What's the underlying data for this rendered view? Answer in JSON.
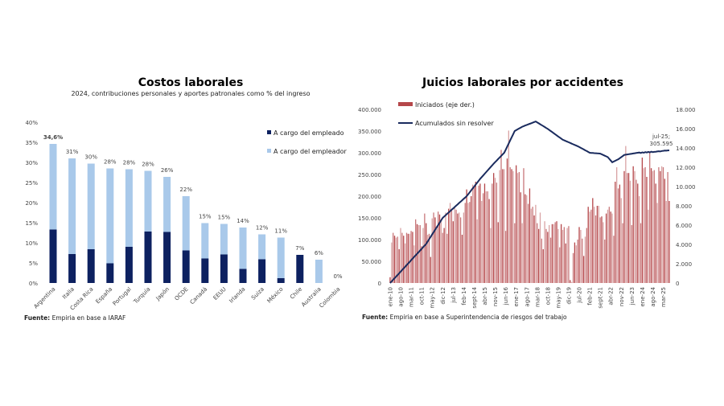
{
  "colors": {
    "empleado": "#0d2160",
    "empleador": "#a9c9ea",
    "iniciados": "#b5474a",
    "acumulados": "#1a2b5e"
  },
  "chart_data": [
    {
      "type": "bar",
      "stacked": true,
      "title": "Costos laborales",
      "subtitle": "2024, contribuciones personales y aportes patronales como % del ingreso",
      "source_bold": "Fuente:",
      "source": "Empiria en base a IARAF",
      "ylim": [
        0,
        40
      ],
      "yticks": [
        "0%",
        "5%",
        "10%",
        "15%",
        "20%",
        "25%",
        "30%",
        "35%",
        "40%"
      ],
      "legend_position": "top-right",
      "categories": [
        "Argentina",
        "Italia",
        "Costa Rica",
        "España",
        "Portugal",
        "Turquía",
        "Japón",
        "OCDE",
        "Canadá",
        "EEUU",
        "Irlanda",
        "Suiza",
        "México",
        "Chile",
        "Australia",
        "Colombia"
      ],
      "series": [
        {
          "name": "A cargo del empleado",
          "values": [
            13.3,
            7.2,
            8.4,
            4.9,
            9.0,
            12.8,
            12.7,
            8.1,
            6.1,
            7.1,
            3.5,
            5.9,
            1.2,
            7.0,
            0,
            0
          ]
        },
        {
          "name": "A cargo del empleador",
          "values": [
            21.3,
            23.8,
            21.3,
            23.6,
            19.3,
            15.1,
            13.7,
            13.5,
            8.8,
            7.6,
            10.3,
            6.2,
            10.1,
            0,
            5.8,
            0
          ]
        }
      ],
      "data_labels": [
        "34,6%",
        "31%",
        "30%",
        "28%",
        "28%",
        "28%",
        "26%",
        "22%",
        "15%",
        "15%",
        "14%",
        "12%",
        "11%",
        "7%",
        "6%",
        "0%"
      ]
    },
    {
      "type": "bar+line",
      "title": "Juicios laborales por accidentes",
      "source_bold": "Fuente:",
      "source": "Empiria en base a Superintendencia de riesgos del trabajo",
      "legend_position": "top-left",
      "y_left": {
        "lim": [
          0,
          400000
        ],
        "ticks": [
          "0",
          "50.000",
          "100.000",
          "150.000",
          "200.000",
          "250.000",
          "300.000",
          "350.000",
          "400.000"
        ]
      },
      "y_right": {
        "lim": [
          0,
          18000
        ],
        "ticks": [
          "0",
          "2.000",
          "4.000",
          "6.000",
          "8.000",
          "10.000",
          "12.000",
          "14.000",
          "16.000",
          "18.000"
        ]
      },
      "x_start": "ene-10",
      "x_end": "jul-25",
      "x_ticklabels": [
        "ene-10",
        "ago-10",
        "mar-11",
        "oct-11",
        "may-12",
        "dic-12",
        "jul-13",
        "feb-14",
        "sept-14",
        "abr-15",
        "nov-15",
        "jun-16",
        "ene-17",
        "ago-17",
        "mar-18",
        "oct-18",
        "may-19",
        "dic-19",
        "jul-20",
        "feb-21",
        "sept-21",
        "abr-22",
        "nov-22",
        "jun-23",
        "ene-24",
        "ago-24",
        "mar-25"
      ],
      "annotation": {
        "line1": "jul-25;",
        "line2": "305.595"
      },
      "series": [
        {
          "name": "Iniciados (eje der.)",
          "axis": "right",
          "kind": "bar",
          "values": [
            600,
            4200,
            5200,
            4900,
            4700,
            4800,
            3500,
            5700,
            5200,
            4900,
            4100,
            5200,
            5100,
            5100,
            5400,
            5300,
            3900,
            6600,
            6100,
            6000,
            6000,
            3800,
            5700,
            7200,
            6200,
            5000,
            5100,
            2700,
            6700,
            7300,
            6800,
            5600,
            7400,
            7100,
            6600,
            5200,
            5700,
            7300,
            5100,
            7700,
            8300,
            7500,
            6400,
            7800,
            7600,
            7200,
            7300,
            6800,
            5000,
            7300,
            8300,
            9700,
            8300,
            8400,
            9000,
            10200,
            10000,
            10500,
            6600,
            10100,
            10300,
            8500,
            9300,
            10300,
            9500,
            9500,
            8700,
            5700,
            10300,
            11400,
            10900,
            10400,
            6300,
            11700,
            13800,
            11800,
            11800,
            5400,
            12900,
            15800,
            12000,
            11800,
            11600,
            6200,
            12200,
            11400,
            11500,
            9400,
            6200,
            11900,
            9200,
            9100,
            8200,
            9800,
            7700,
            7900,
            7000,
            8100,
            6200,
            5600,
            7300,
            4600,
            3500,
            6400,
            5600,
            5300,
            6000,
            4700,
            6100,
            6100,
            6300,
            6400,
            5600,
            3700,
            6100,
            5500,
            5800,
            4100,
            5700,
            5900,
            300,
            100,
            3100,
            4200,
            3900,
            4500,
            5800,
            5500,
            4600,
            2800,
            4800,
            5700,
            7900,
            7400,
            7600,
            8800,
            7900,
            7000,
            8000,
            8000,
            6800,
            6900,
            6300,
            4500,
            7200,
            7600,
            7900,
            7400,
            7200,
            4900,
            10500,
            12000,
            9800,
            10200,
            8800,
            6200,
            11600,
            14200,
            11400,
            11400,
            10600,
            6000,
            12100,
            11600,
            10700,
            10300,
            9000,
            6200,
            13000,
            11900,
            12000,
            11000,
            7600,
            13500,
            11900,
            11600,
            11700,
            10300,
            8300,
            12000,
            11600,
            12100,
            12000,
            10800,
            8500,
            11500,
            8500
          ]
        },
        {
          "name": "Acumulados sin resolver",
          "axis": "left",
          "kind": "line",
          "values": [
            0,
            3750,
            7500,
            11250,
            15000,
            18750,
            22500,
            26250,
            30000,
            33750,
            37500,
            41250,
            45000,
            48750,
            52500,
            56250,
            60000,
            63750,
            67500,
            71250,
            75000,
            78750,
            82500,
            86250,
            90000,
            95500,
            100900,
            106400,
            111800,
            117300,
            122700,
            128200,
            133600,
            139100,
            144500,
            150000,
            153100,
            156300,
            159400,
            162500,
            165600,
            168800,
            171900,
            175000,
            178100,
            181300,
            184400,
            187500,
            190600,
            193800,
            196900,
            200000,
            204400,
            208900,
            213300,
            217800,
            222200,
            226700,
            231100,
            235600,
            240000,
            243900,
            247800,
            251700,
            255600,
            259400,
            263300,
            267200,
            271100,
            275000,
            278600,
            282100,
            285700,
            289300,
            292900,
            296400,
            300000,
            307100,
            314300,
            321400,
            328600,
            335700,
            342900,
            350000,
            352000,
            354000,
            356000,
            358000,
            360000,
            361300,
            362700,
            364000,
            365300,
            366700,
            368000,
            369300,
            370700,
            372000,
            369900,
            367800,
            365600,
            363500,
            361400,
            359300,
            357100,
            355000,
            352500,
            350000,
            347500,
            345000,
            342500,
            340000,
            337500,
            335000,
            332500,
            330000,
            328500,
            327000,
            325500,
            324000,
            322500,
            321000,
            319500,
            318000,
            316500,
            315000,
            313100,
            311300,
            309400,
            307500,
            305600,
            303800,
            301900,
            300000,
            299700,
            299400,
            299100,
            298900,
            298600,
            298300,
            298000,
            296400,
            294800,
            293200,
            291600,
            290000,
            286000,
            282000,
            278000,
            279800,
            281500,
            283300,
            285000,
            287500,
            290000,
            292500,
            295000,
            295600,
            296100,
            296700,
            297200,
            297800,
            298300,
            298900,
            299400,
            300000,
            300500,
            299500,
            301000,
            300000,
            301500,
            300500,
            302000,
            301000,
            302500,
            301500,
            302000,
            302500,
            303000,
            303500,
            303000,
            304000,
            304500,
            305000,
            304800,
            305300,
            305595
          ]
        }
      ]
    }
  ]
}
